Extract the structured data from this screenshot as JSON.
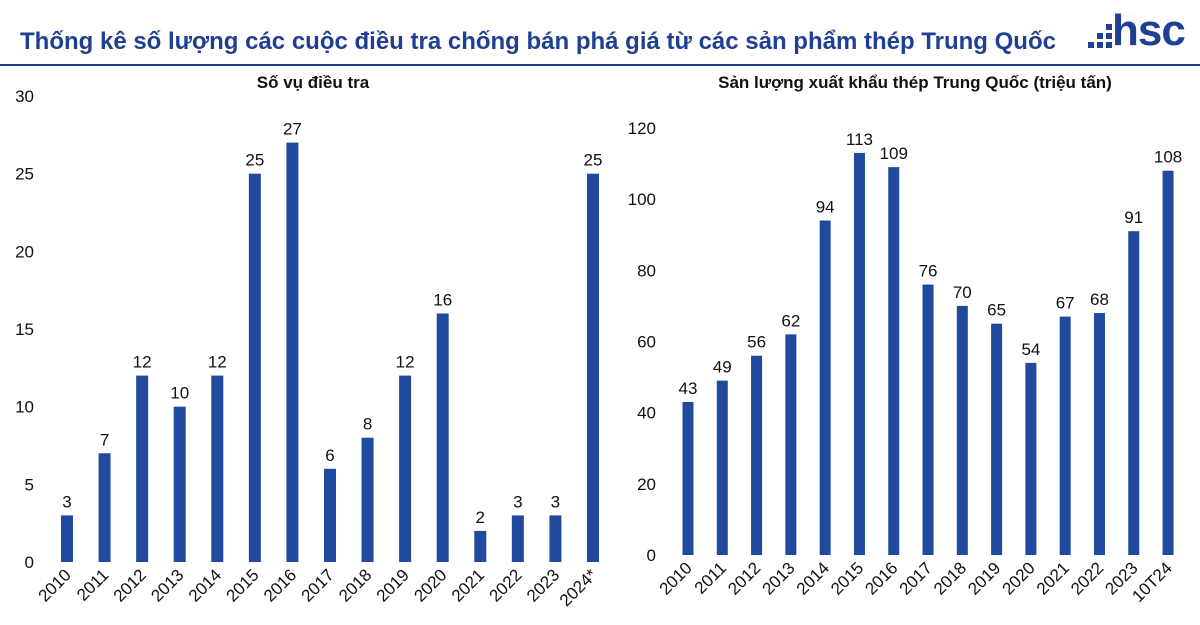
{
  "page": {
    "title": "Thống kê số lượng các cuộc điều tra chống bán phá giá từ các sản phẩm thép Trung Quốc",
    "logo_text": "hsc"
  },
  "colors": {
    "bar": "#1f4a9e",
    "brand": "#1f3f92"
  },
  "chart_data": [
    {
      "type": "bar",
      "title": "Số vụ điều tra",
      "categories": [
        "2010",
        "2011",
        "2012",
        "2013",
        "2014",
        "2015",
        "2016",
        "2017",
        "2018",
        "2019",
        "2020",
        "2021",
        "2022",
        "2023",
        "2024*"
      ],
      "values": [
        3,
        7,
        12,
        10,
        12,
        25,
        27,
        6,
        8,
        12,
        16,
        2,
        3,
        3,
        25
      ],
      "ylim": [
        0,
        30
      ],
      "yticks": [
        0,
        5,
        10,
        15,
        20,
        25,
        30
      ],
      "grid": false,
      "data_labels": true
    },
    {
      "type": "bar",
      "title": "Sản lượng xuất khẩu thép Trung Quốc (triệu tấn)",
      "categories": [
        "2010",
        "2011",
        "2012",
        "2013",
        "2014",
        "2015",
        "2016",
        "2017",
        "2018",
        "2019",
        "2020",
        "2021",
        "2022",
        "2023",
        "10T24"
      ],
      "values": [
        43,
        49,
        56,
        62,
        94,
        113,
        109,
        76,
        70,
        65,
        54,
        67,
        68,
        91,
        108
      ],
      "ylim": [
        0,
        120
      ],
      "yticks": [
        0,
        20,
        40,
        60,
        80,
        100,
        120
      ],
      "grid": false,
      "data_labels": true
    }
  ]
}
